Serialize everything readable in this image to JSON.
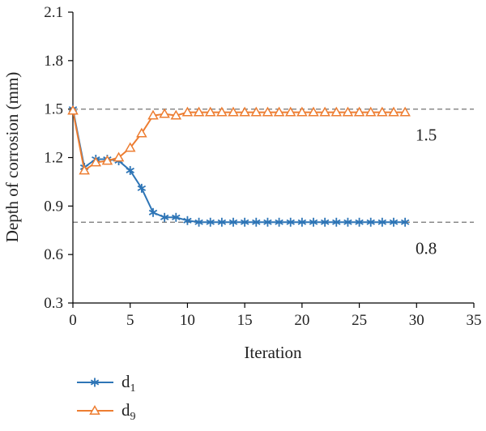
{
  "chart_data": {
    "type": "line",
    "xlabel": "Iteration",
    "ylabel": "Depth of corrosion (mm)",
    "xlim": [
      0,
      35
    ],
    "ylim": [
      0.3,
      2.1
    ],
    "xticks": [
      "0",
      "5",
      "10",
      "15",
      "20",
      "25",
      "30",
      "35"
    ],
    "yticks": [
      "0.3",
      "0.6",
      "0.9",
      "1.2",
      "1.5",
      "1.8",
      "2.1"
    ],
    "grid": false,
    "legend_position": "bottom-left",
    "reference_lines": [
      {
        "y": 1.5,
        "label": "1.5",
        "color": "#808080"
      },
      {
        "y": 0.8,
        "label": "0.8",
        "color": "#808080"
      }
    ],
    "x": [
      0,
      1,
      2,
      3,
      4,
      5,
      6,
      7,
      8,
      9,
      10,
      11,
      12,
      13,
      14,
      15,
      16,
      17,
      18,
      19,
      20,
      21,
      22,
      23,
      24,
      25,
      26,
      27,
      28,
      29
    ],
    "series": [
      {
        "name": "d",
        "subscript": "1",
        "color": "#2E75B6",
        "marker": "asterisk",
        "values": [
          1.5,
          1.14,
          1.19,
          1.19,
          1.18,
          1.12,
          1.01,
          0.86,
          0.83,
          0.83,
          0.81,
          0.8,
          0.8,
          0.8,
          0.8,
          0.8,
          0.8,
          0.8,
          0.8,
          0.8,
          0.8,
          0.8,
          0.8,
          0.8,
          0.8,
          0.8,
          0.8,
          0.8,
          0.8,
          0.8
        ]
      },
      {
        "name": "d",
        "subscript": "9",
        "color": "#ED7D31",
        "marker": "triangle",
        "values": [
          1.49,
          1.12,
          1.17,
          1.18,
          1.2,
          1.26,
          1.35,
          1.46,
          1.47,
          1.46,
          1.48,
          1.48,
          1.48,
          1.48,
          1.48,
          1.48,
          1.48,
          1.48,
          1.48,
          1.48,
          1.48,
          1.48,
          1.48,
          1.48,
          1.48,
          1.48,
          1.48,
          1.48,
          1.48,
          1.48
        ]
      }
    ]
  }
}
